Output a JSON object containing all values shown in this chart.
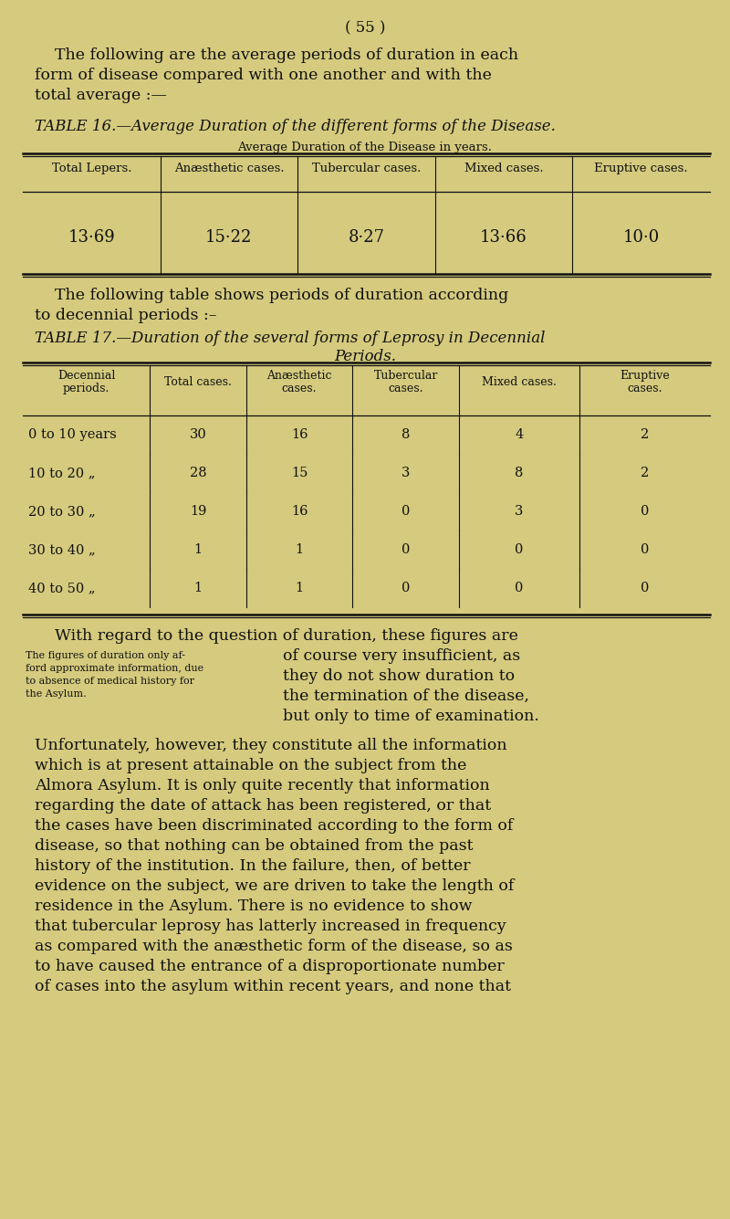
{
  "bg_color": "#d5ca7e",
  "page_number": "( 55 )",
  "para1_line1": "    The following are the average periods of duration in each",
  "para1_line2": "form of disease compared with one another and with the",
  "para1_line3": "total average :—",
  "table16_title": "TABLE 16.—Average Duration of the different forms of the Disease.",
  "table16_subtitle": "Average Duration of the Disease in years.",
  "table16_headers": [
    "Total Lepers.",
    "Anæsthetic cases.",
    "Tubercular cases.",
    "Mixed cases.",
    "Eruptive cases."
  ],
  "table16_values": [
    "13·69",
    "15·22",
    "8·27",
    "13·66",
    "10·0"
  ],
  "para2_line1": "    The following table shows periods of duration according",
  "para2_line2": "to decennial periods :–",
  "table17_title_line1": "TABLE 17.—Duration of the several forms of Leprosy in Decennial",
  "table17_title_line2": "Periods.",
  "table17_col_headers": [
    "Decennial\nperiods.",
    "Total cases.",
    "Anæsthetic\ncases.",
    "Tubercular\ncases.",
    "Mixed cases.",
    "Eruptive\ncases."
  ],
  "table17_rows": [
    [
      "0 to 10 years",
      "30",
      "16",
      "8",
      "4",
      "2"
    ],
    [
      "10 to 20 „",
      "28",
      "15",
      "3",
      "8",
      "2"
    ],
    [
      "20 to 30 „",
      "19",
      "16",
      "0",
      "3",
      "0"
    ],
    [
      "30 to 40 „",
      "1",
      "1",
      "0",
      "0",
      "0"
    ],
    [
      "40 to 50 „",
      "1",
      "1",
      "0",
      "0",
      "0"
    ]
  ],
  "para3_intro": "    With regard to the question of duration, these figures are",
  "para3_right_lines": [
    "of course very insufficient, as",
    "they do not show duration to",
    "the termination of the disease,",
    "but only to time of examination."
  ],
  "para3_sidenote_lines": [
    "The figures of duration only af-",
    "ford approximate information, due",
    "to absence of medical history for",
    "the Asylum."
  ],
  "para4_lines": [
    "Unfortunately, however, they constitute all the information",
    "which is at present attainable on the subject from the",
    "Almora Asylum. It is only quite recently that information",
    "regarding the date of attack has been registered, or that",
    "the cases have been discriminated according to the form of",
    "disease, so that nothing can be obtained from the past",
    "history of the institution. In the failure, then, of better",
    "evidence on the subject, we are driven to take the length of",
    "residence in the Asylum. There is no evidence to show",
    "that tubercular leprosy has latterly increased in frequency",
    "as compared with the anæsthetic form of the disease, so as",
    "to have caused the entrance of a disproportionate number",
    "of cases into the asylum within recent years, and none that"
  ]
}
